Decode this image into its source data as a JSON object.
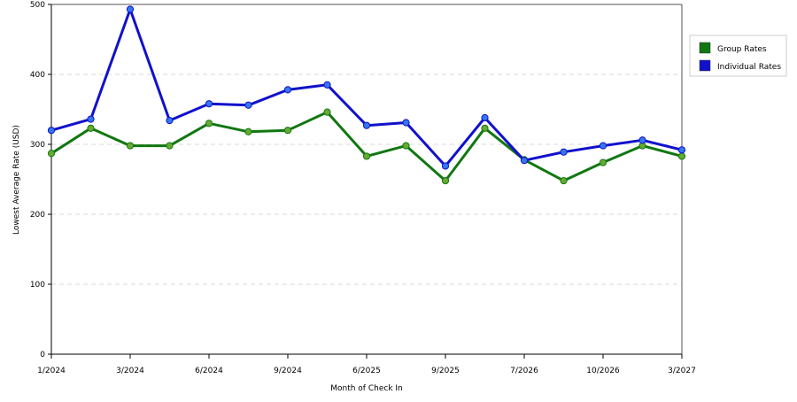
{
  "chart_data": {
    "type": "line",
    "title": "",
    "xlabel": "Month of Check In",
    "ylabel": "Lowest Average Rate (USD)",
    "ylim": [
      0,
      500
    ],
    "yticks": [
      0,
      100,
      200,
      300,
      400,
      500
    ],
    "grid": "horizontal-dashed",
    "legend_position": "right",
    "categories": [
      "1/2024",
      "",
      "3/2024",
      "",
      "6/2024",
      "",
      "9/2024",
      "",
      "6/2025",
      "",
      "9/2025",
      "",
      "7/2026",
      "",
      "10/2026",
      "",
      "3/2027"
    ],
    "series": [
      {
        "name": "Group Rates",
        "color": "#117711",
        "marker_color": "#66aa33",
        "values": [
          287,
          323,
          298,
          298,
          330,
          318,
          320,
          346,
          283,
          298,
          248,
          323,
          278,
          248,
          274,
          298,
          283
        ]
      },
      {
        "name": "Individual Rates",
        "color": "#1111cc",
        "marker_color": "#3377ee",
        "values": [
          320,
          336,
          493,
          334,
          358,
          356,
          378,
          385,
          327,
          331,
          269,
          338,
          277,
          289,
          298,
          306,
          292
        ]
      }
    ]
  }
}
